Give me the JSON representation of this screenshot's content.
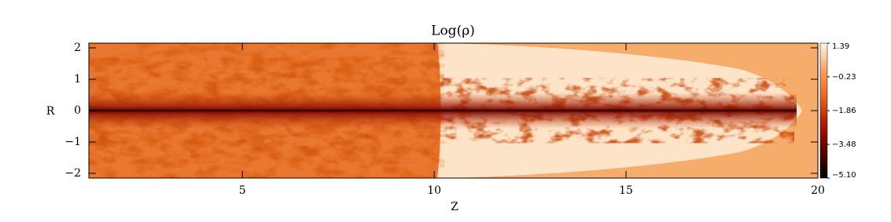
{
  "chart_data": {
    "type": "heatmap",
    "title": "Log(ρ)",
    "xlabel": "Z",
    "ylabel": "R",
    "xlim": [
      1,
      20
    ],
    "xticks": [
      5,
      10,
      15,
      20
    ],
    "ylim": [
      -2.15,
      2.15
    ],
    "yticks": [
      -2,
      -1,
      0,
      1,
      2
    ],
    "colorbar": {
      "lim": [
        -5.1,
        1.39
      ],
      "ticks": [
        1.39,
        -0.23,
        -1.86,
        -3.48,
        {
          "value": -5.1,
          "label": "-5.10"
        }
      ],
      "colors": [
        "#000000",
        "#5a0000",
        "#b01800",
        "#e8651e",
        "#f7a45e",
        "#fff4e6"
      ]
    }
  }
}
